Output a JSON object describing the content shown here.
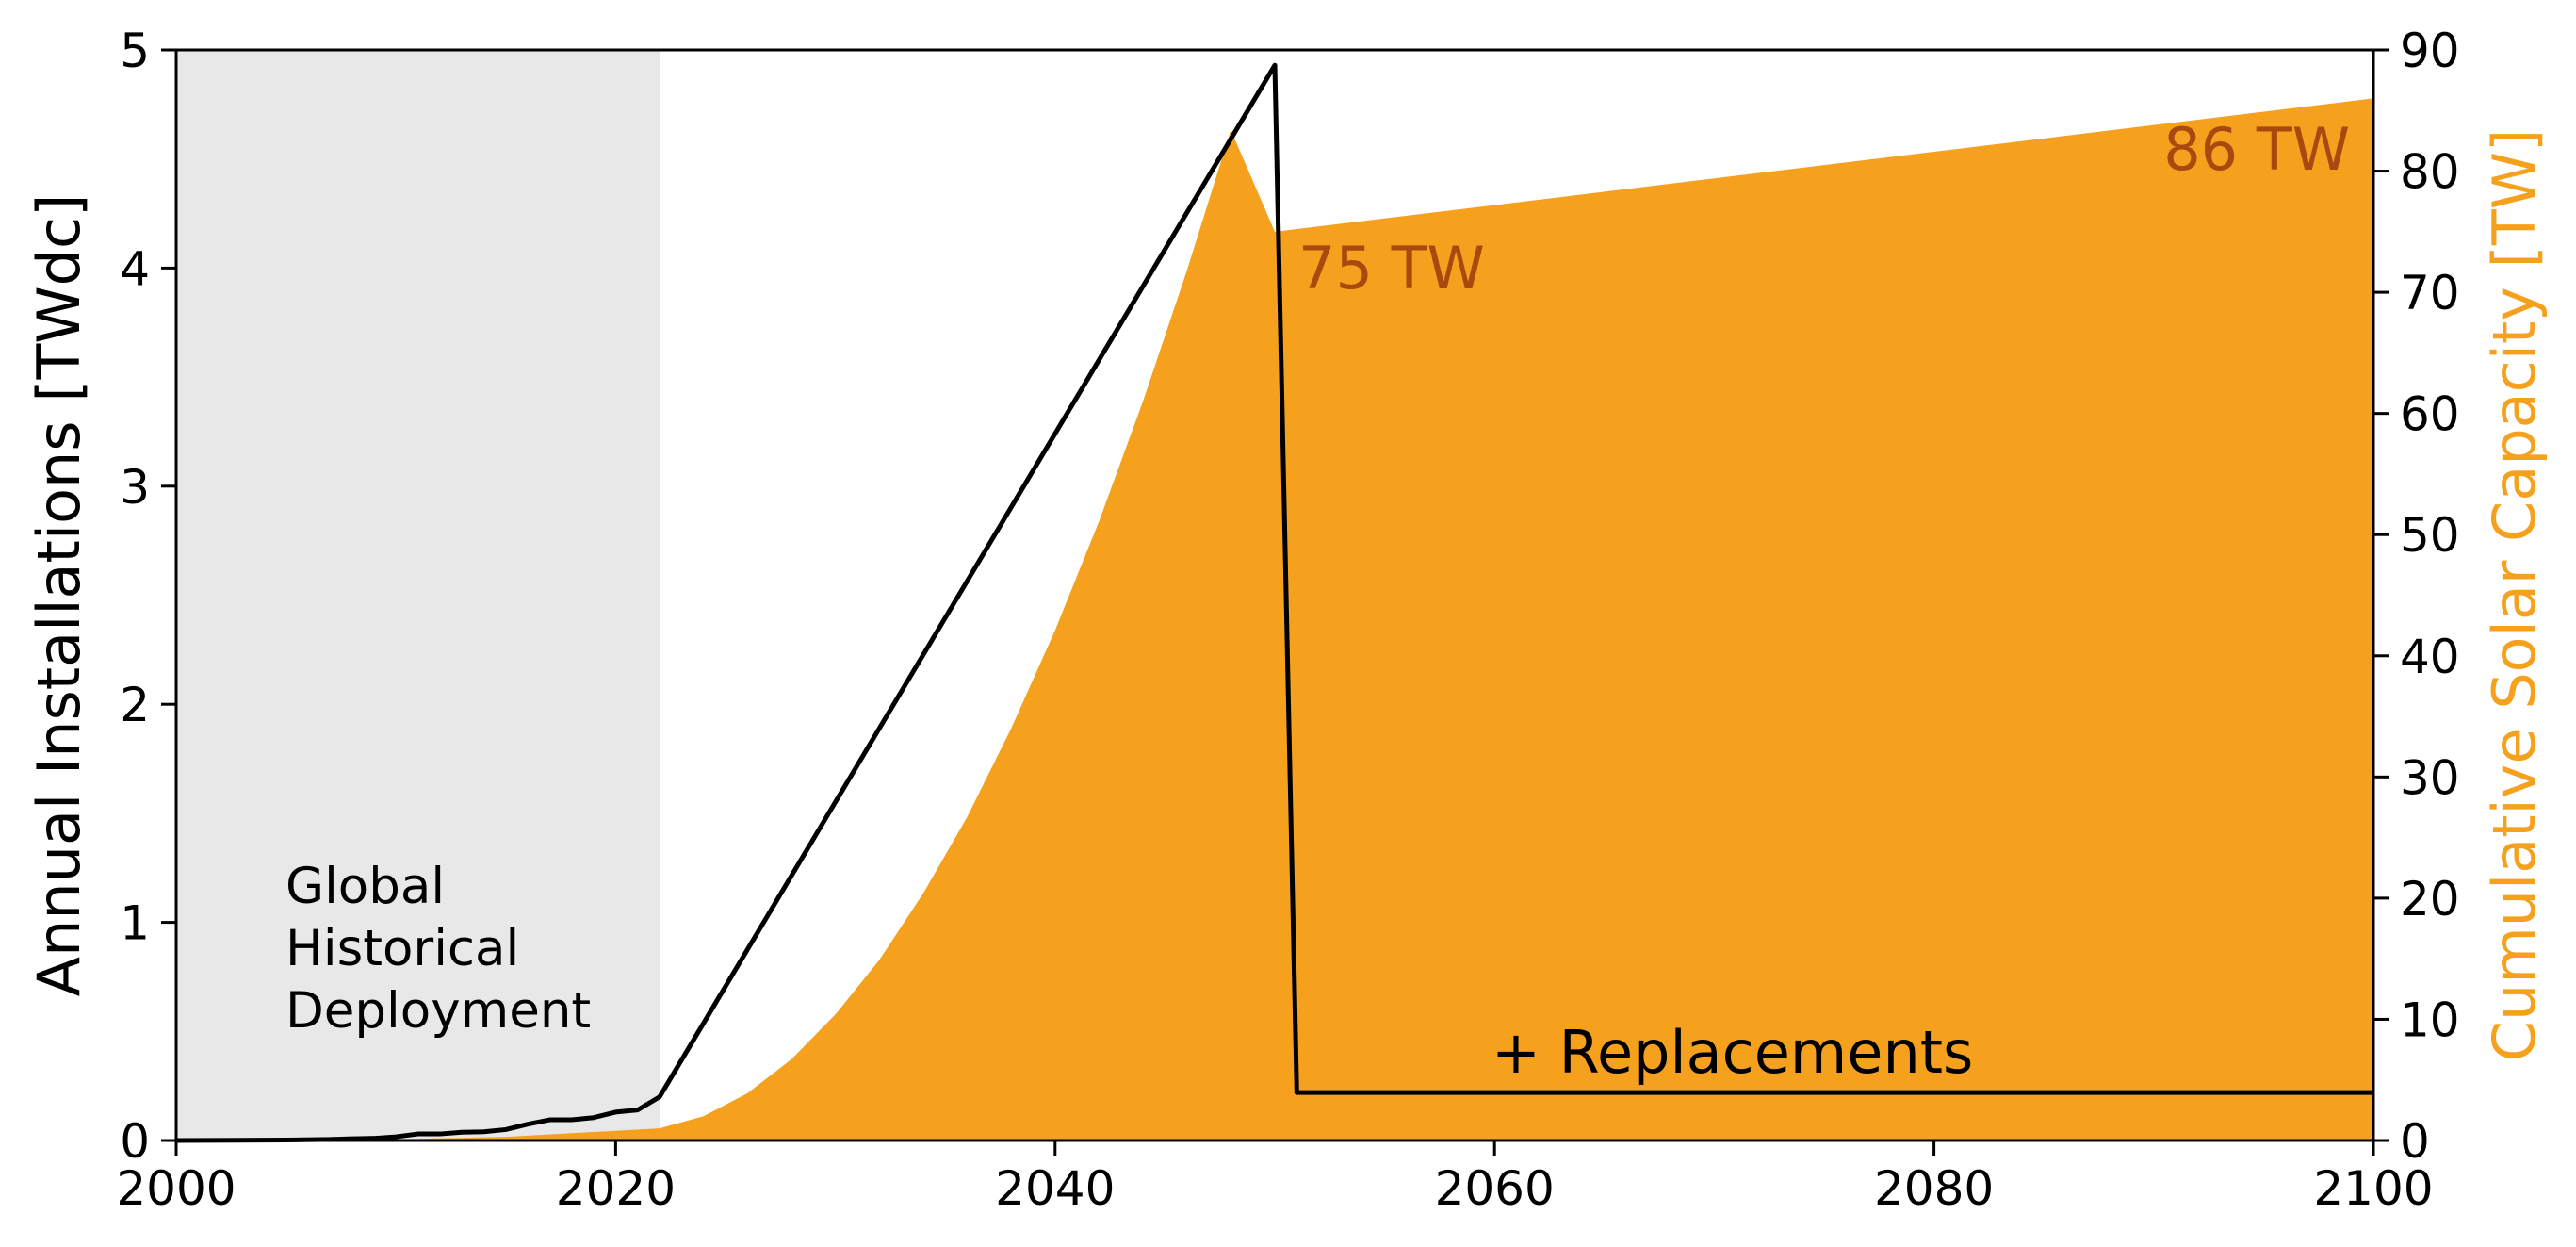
{
  "chart_data": {
    "type": "line",
    "title": "",
    "xlabel": "",
    "xlim": [
      2000,
      2100
    ],
    "x_ticks": [
      2000,
      2020,
      2040,
      2060,
      2080,
      2100
    ],
    "ylabel_left": "Annual Installations [TWdc]",
    "ylim_left": [
      0,
      5
    ],
    "y_ticks_left": [
      0,
      1,
      2,
      3,
      4,
      5
    ],
    "ylabel_right": "Cumulative Solar Capacity [TW]",
    "ylim_right": [
      0,
      90
    ],
    "y_ticks_right": [
      0,
      10,
      20,
      30,
      40,
      50,
      60,
      70,
      80,
      90
    ],
    "grid": false,
    "historical_region": {
      "x_start": 2000,
      "x_end": 2022,
      "color": "#e8e8e8"
    },
    "colors": {
      "annual_line": "#000000",
      "cumulative_area": "#f5a11d",
      "annotation_dark": "#a9490f",
      "right_axis_label": "#f5a11d"
    },
    "series": [
      {
        "axis": "left",
        "kind": "line",
        "x": [
          2000,
          2005,
          2007,
          2008,
          2009,
          2010,
          2011,
          2012,
          2013,
          2014,
          2015,
          2016,
          2017,
          2018,
          2019,
          2020,
          2021,
          2022,
          2050,
          2051,
          2100
        ],
        "values": [
          0,
          0.002,
          0.005,
          0.008,
          0.01,
          0.017,
          0.03,
          0.03,
          0.038,
          0.04,
          0.05,
          0.075,
          0.095,
          0.095,
          0.105,
          0.13,
          0.14,
          0.2,
          4.93,
          0.22,
          0.22
        ]
      },
      {
        "axis": "right",
        "kind": "area",
        "x": [
          2000,
          2010,
          2015,
          2020,
          2022,
          2024,
          2026,
          2028,
          2030,
          2032,
          2034,
          2036,
          2038,
          2040,
          2042,
          2044,
          2046,
          2048,
          2050,
          2100
        ],
        "values": [
          0,
          0.1,
          0.3,
          0.8,
          1.0,
          2.0,
          3.9,
          6.7,
          10.4,
          14.9,
          20.4,
          26.7,
          34.0,
          42.1,
          51.1,
          61.0,
          71.8,
          83.4,
          75.0,
          86.0
        ]
      }
    ],
    "annotations": {
      "historical": [
        "Global",
        "Historical",
        "Deployment"
      ],
      "peak": "75 TW",
      "end": "86 TW",
      "replacements": "+ Replacements"
    }
  }
}
